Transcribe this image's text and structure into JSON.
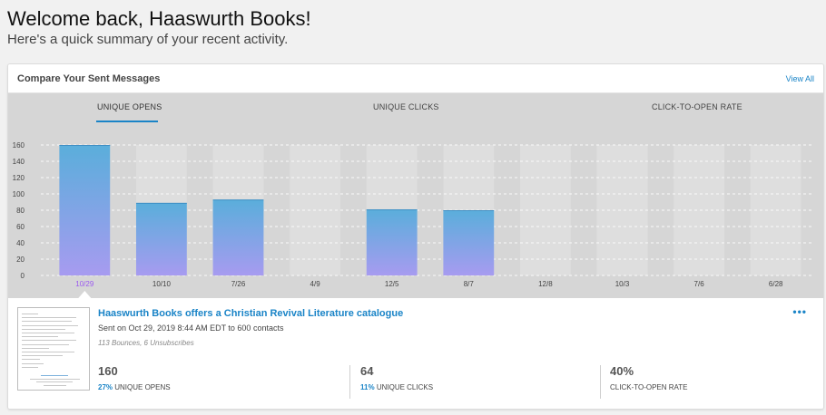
{
  "header": {
    "greeting": "Welcome back, Haaswurth Books!",
    "subtitle": "Here's a quick summary of your recent activity."
  },
  "card": {
    "title": "Compare Your Sent Messages",
    "view_all": "View All"
  },
  "tabs": [
    {
      "label": "UNIQUE OPENS",
      "active": true
    },
    {
      "label": "UNIQUE CLICKS",
      "active": false
    },
    {
      "label": "CLICK-TO-OPEN RATE",
      "active": false
    }
  ],
  "colors": {
    "accent": "#1a84c7",
    "bar_top": "#5aaedb",
    "bar_bottom": "#a79bf0",
    "slot": "#dedede",
    "chart_bg": "#d6d6d6",
    "selected_label": "#9b59f0"
  },
  "chart_data": {
    "type": "bar",
    "categories": [
      "10/29",
      "10/10",
      "7/26",
      "4/9",
      "12/5",
      "8/7",
      "12/8",
      "10/3",
      "7/6",
      "6/28"
    ],
    "values": [
      160,
      89,
      93,
      0,
      81,
      80,
      0,
      0,
      0,
      0
    ],
    "yticks": [
      0,
      20,
      40,
      60,
      80,
      100,
      120,
      140,
      160
    ],
    "ylim": [
      0,
      160
    ],
    "selected_index": 0,
    "grid": true
  },
  "message": {
    "title": "Haaswurth Books offers a Christian Revival Literature catalogue",
    "sent": "Sent on Oct 29, 2019 8:44 AM EDT to 600 contacts",
    "bounces": "113 Bounces, 6 Unsubscribes",
    "more": "•••",
    "stats": [
      {
        "value": "160",
        "pct": "27%",
        "label": "UNIQUE OPENS"
      },
      {
        "value": "64",
        "pct": "11%",
        "label": "UNIQUE CLICKS"
      },
      {
        "value": "40%",
        "pct": "",
        "label": "CLICK-TO-OPEN RATE"
      }
    ]
  }
}
